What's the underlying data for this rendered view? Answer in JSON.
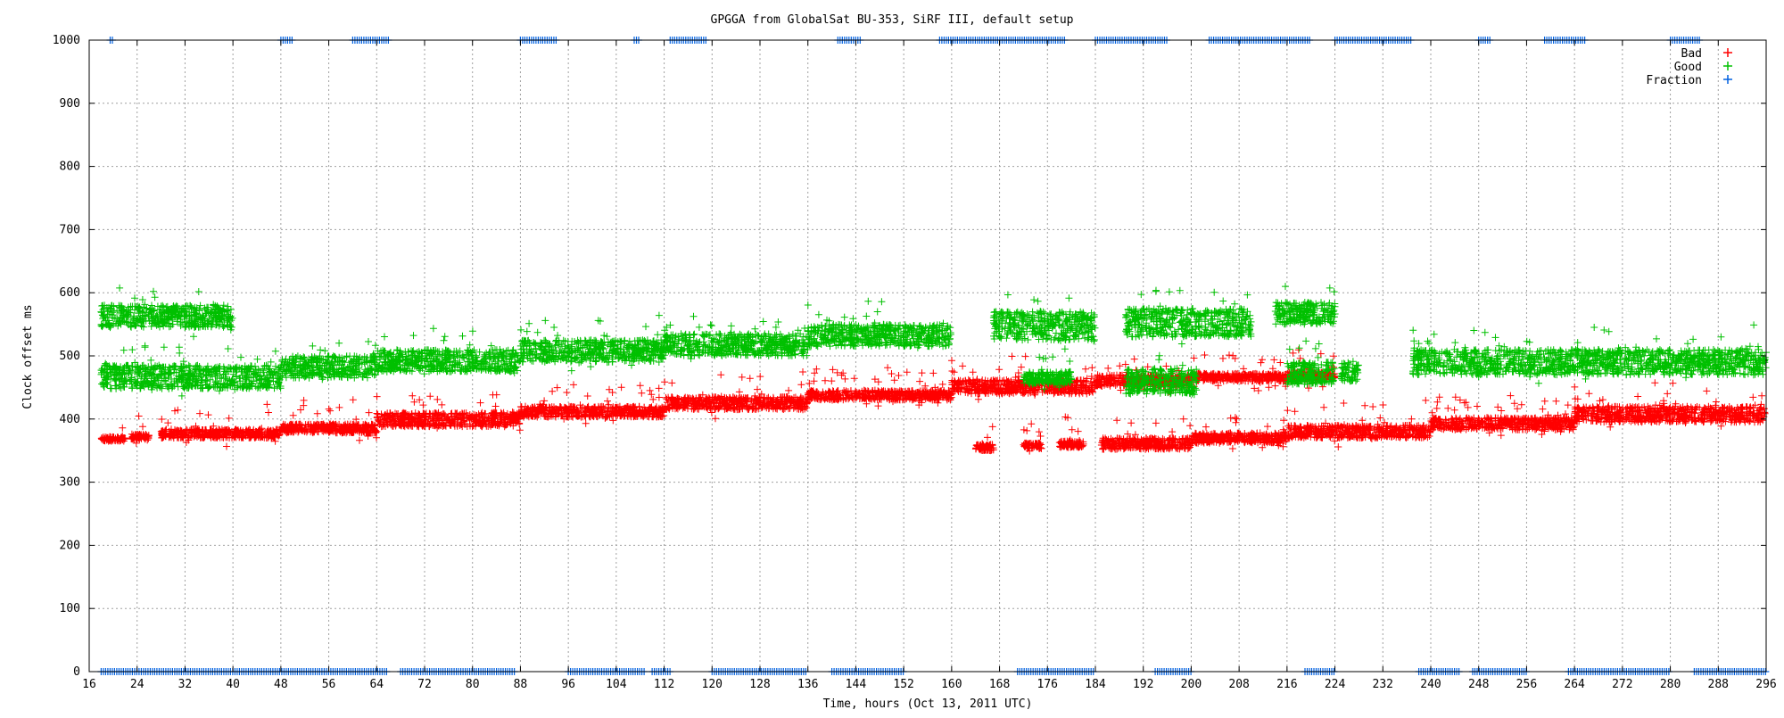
{
  "chart_data": {
    "type": "scatter",
    "title": "GPGGA from GlobalSat BU-353, SiRF III, default setup",
    "xlabel": "Time, hours (Oct 13, 2011 UTC)",
    "ylabel": "Clock offset ms",
    "xlim": [
      16,
      296
    ],
    "ylim": [
      0,
      1000
    ],
    "x_ticks": [
      16,
      24,
      32,
      40,
      48,
      56,
      64,
      72,
      80,
      88,
      96,
      104,
      112,
      120,
      128,
      136,
      144,
      152,
      160,
      168,
      176,
      184,
      192,
      200,
      208,
      216,
      224,
      232,
      240,
      248,
      256,
      264,
      272,
      280,
      288,
      296
    ],
    "y_ticks": [
      0,
      100,
      200,
      300,
      400,
      500,
      600,
      700,
      800,
      900,
      1000
    ],
    "grid": true,
    "legend_position": "top-right",
    "marker": "+",
    "series": [
      {
        "name": "Bad",
        "color": "#ff0000",
        "bands": [
          {
            "x": [
              18,
              22
            ],
            "y": [
              365,
              372
            ]
          },
          {
            "x": [
              23,
              26
            ],
            "y": [
              368,
              376
            ]
          },
          {
            "x": [
              28,
              48
            ],
            "y": [
              370,
              384
            ]
          },
          {
            "x": [
              48,
              64
            ],
            "y": [
              378,
              392
            ]
          },
          {
            "x": [
              64,
              88
            ],
            "y": [
              388,
              410
            ]
          },
          {
            "x": [
              88,
              112
            ],
            "y": [
              403,
              420
            ]
          },
          {
            "x": [
              112,
              136
            ],
            "y": [
              415,
              435
            ]
          },
          {
            "x": [
              136,
              160
            ],
            "y": [
              430,
              445
            ]
          },
          {
            "x": [
              160,
              184
            ],
            "y": [
              440,
              462
            ]
          },
          {
            "x": [
              184,
              200
            ],
            "y": [
              452,
              470
            ]
          },
          {
            "x": [
              200,
              216
            ],
            "y": [
              460,
              472
            ]
          },
          {
            "x": [
              216,
              224
            ],
            "y": [
              462,
              475
            ]
          },
          {
            "x": [
              164,
              167
            ],
            "y": [
              350,
              360
            ]
          },
          {
            "x": [
              172,
              175
            ],
            "y": [
              353,
              362
            ]
          },
          {
            "x": [
              178,
              182
            ],
            "y": [
              355,
              365
            ]
          },
          {
            "x": [
              185,
              200
            ],
            "y": [
              352,
              370
            ]
          },
          {
            "x": [
              200,
              216
            ],
            "y": [
              362,
              378
            ]
          },
          {
            "x": [
              216,
              240
            ],
            "y": [
              370,
              390
            ]
          },
          {
            "x": [
              240,
              264
            ],
            "y": [
              383,
              402
            ]
          },
          {
            "x": [
              264,
              296
            ],
            "y": [
              395,
              420
            ]
          }
        ]
      },
      {
        "name": "Good",
        "color": "#00c000",
        "bands": [
          {
            "x": [
              18,
              40
            ],
            "y": [
              545,
              580
            ]
          },
          {
            "x": [
              18,
              48
            ],
            "y": [
              448,
              485
            ]
          },
          {
            "x": [
              48,
              64
            ],
            "y": [
              465,
              500
            ]
          },
          {
            "x": [
              64,
              88
            ],
            "y": [
              475,
              510
            ]
          },
          {
            "x": [
              88,
              112
            ],
            "y": [
              490,
              525
            ]
          },
          {
            "x": [
              112,
              136
            ],
            "y": [
              500,
              535
            ]
          },
          {
            "x": [
              136,
              160
            ],
            "y": [
              515,
              550
            ]
          },
          {
            "x": [
              167,
              184
            ],
            "y": [
              525,
              570
            ]
          },
          {
            "x": [
              189,
              210
            ],
            "y": [
              530,
              575
            ]
          },
          {
            "x": [
              214,
              224
            ],
            "y": [
              550,
              585
            ]
          },
          {
            "x": [
              172,
              180
            ],
            "y": [
              455,
              475
            ]
          },
          {
            "x": [
              189,
              201
            ],
            "y": [
              440,
              480
            ]
          },
          {
            "x": [
              216,
              224
            ],
            "y": [
              455,
              490
            ]
          },
          {
            "x": [
              225,
              228
            ],
            "y": [
              460,
              490
            ]
          },
          {
            "x": [
              237,
              296
            ],
            "y": [
              470,
              510
            ]
          }
        ]
      },
      {
        "name": "Fraction",
        "color": "#0060e0",
        "segments_at_1000": [
          [
            19.5,
            20
          ],
          [
            48,
            50
          ],
          [
            60,
            66
          ],
          [
            88,
            94
          ],
          [
            107,
            108
          ],
          [
            113,
            119
          ],
          [
            141,
            145
          ],
          [
            158,
            179
          ],
          [
            184,
            196
          ],
          [
            203,
            220
          ],
          [
            224,
            237
          ],
          [
            248,
            250
          ],
          [
            259,
            266
          ],
          [
            280,
            285
          ]
        ],
        "segments_at_0": [
          [
            18,
            66
          ],
          [
            68,
            87
          ],
          [
            96,
            109
          ],
          [
            110,
            113
          ],
          [
            120,
            136
          ],
          [
            140,
            152
          ],
          [
            171,
            184
          ],
          [
            194,
            200
          ],
          [
            219,
            224
          ],
          [
            238,
            245
          ],
          [
            247,
            256
          ],
          [
            263,
            280
          ],
          [
            284,
            296
          ]
        ]
      }
    ]
  }
}
